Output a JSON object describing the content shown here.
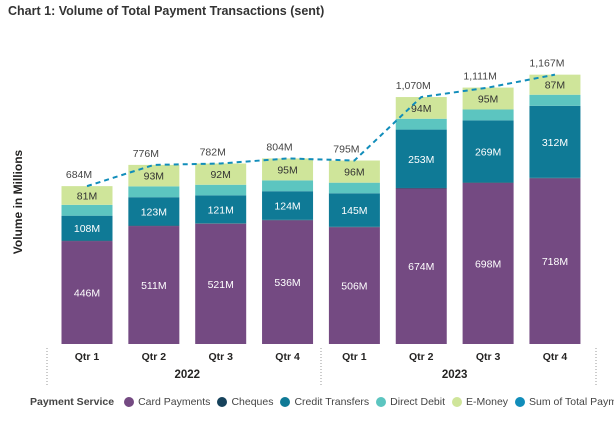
{
  "title": "Chart 1: Volume of Total Payment Transactions (sent)",
  "chart_data": {
    "type": "bar",
    "stacked": true,
    "title": "Chart 1: Volume of Total Payment Transactions (sent)",
    "ylabel": "Volume in Millions",
    "xlabel": "",
    "ylim": [
      0,
      1250
    ],
    "grid": false,
    "legend_title": "Payment Service",
    "legend_position": "bottom",
    "categories": [
      "Qtr 1",
      "Qtr 2",
      "Qtr 3",
      "Qtr 4",
      "Qtr 1",
      "Qtr 2",
      "Qtr 3",
      "Qtr 4"
    ],
    "groups": [
      {
        "label": "2022",
        "categories": [
          "Qtr 1",
          "Qtr 2",
          "Qtr 3",
          "Qtr 4"
        ]
      },
      {
        "label": "2023",
        "categories": [
          "Qtr 1",
          "Qtr 2",
          "Qtr 3",
          "Qtr 4"
        ]
      }
    ],
    "series": [
      {
        "name": "Card Payments",
        "color": "#744a82",
        "values": [
          446,
          511,
          521,
          536,
          506,
          674,
          698,
          718
        ],
        "labels": [
          "446M",
          "511M",
          "521M",
          "536M",
          "506M",
          "674M",
          "698M",
          "718M"
        ]
      },
      {
        "name": "Cheques",
        "color": "#16425b",
        "values": [
          2,
          2,
          2,
          2,
          2,
          2,
          2,
          2
        ],
        "labels": [
          "",
          "",
          "",
          "",
          "",
          "",
          "",
          ""
        ]
      },
      {
        "name": "Credit Transfers",
        "color": "#0f7a96",
        "values": [
          108,
          123,
          121,
          124,
          145,
          253,
          269,
          312
        ],
        "labels": [
          "108M",
          "123M",
          "121M",
          "124M",
          "145M",
          "253M",
          "269M",
          "312M"
        ]
      },
      {
        "name": "Direct Debit",
        "color": "#5cc5c0",
        "values": [
          47,
          47,
          46,
          47,
          46,
          47,
          47,
          48
        ],
        "labels": [
          "",
          "",
          "",
          "",
          "",
          "",
          "",
          ""
        ]
      },
      {
        "name": "E-Money",
        "color": "#cfe59a",
        "values": [
          81,
          93,
          92,
          95,
          96,
          94,
          95,
          87
        ],
        "labels": [
          "81M",
          "93M",
          "92M",
          "95M",
          "96M",
          "94M",
          "95M",
          "87M"
        ]
      },
      {
        "name": "Sum of Total Payments",
        "color": "#118dba",
        "kind": "line",
        "values": [
          684,
          776,
          782,
          804,
          795,
          1070,
          1111,
          1167
        ],
        "labels": [
          "684M",
          "776M",
          "782M",
          "804M",
          "795M",
          "1,070M",
          "1,111M",
          "1,167M"
        ]
      }
    ]
  },
  "legend": {
    "title": "Payment Service",
    "items": [
      {
        "label": "Card Payments",
        "color": "#744a82"
      },
      {
        "label": "Cheques",
        "color": "#16425b"
      },
      {
        "label": "Credit Transfers",
        "color": "#0f7a96"
      },
      {
        "label": "Direct Debit",
        "color": "#5cc5c0"
      },
      {
        "label": "E-Money",
        "color": "#cfe59a"
      },
      {
        "label": "Sum of Total Payments",
        "color": "#118dba"
      }
    ]
  }
}
